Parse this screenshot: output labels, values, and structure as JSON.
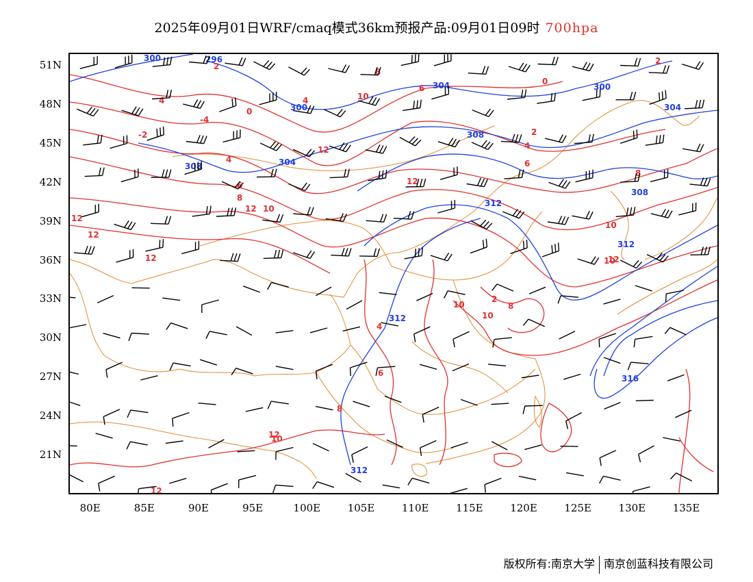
{
  "title": {
    "main": "2025年09月01日WRF/cmaq模式36km预报产品:09月01日09时",
    "level": "700hpa",
    "level_color": "#e03030"
  },
  "map": {
    "projection": "lat-lon",
    "lon_range": [
      78,
      138
    ],
    "lat_range": [
      18,
      52
    ],
    "lat_labels": [
      "51N",
      "48N",
      "45N",
      "42N",
      "39N",
      "36N",
      "33N",
      "30N",
      "27N",
      "24N",
      "21N"
    ],
    "lon_labels": [
      "80E",
      "85E",
      "90E",
      "95E",
      "100E",
      "105E",
      "110E",
      "115E",
      "120E",
      "125E",
      "130E",
      "135E"
    ],
    "colors": {
      "geopotential_height": "#2040e0",
      "temperature": "#e03030",
      "boundaries": "#e08a30",
      "wind_barbs": "#000000"
    },
    "height_contour_labels": [
      "300",
      "296",
      "300",
      "304",
      "300",
      "304",
      "308",
      "304",
      "308",
      "312",
      "308",
      "312",
      "312",
      "316",
      "312"
    ],
    "temperature_contour_labels": [
      "2",
      "0",
      "4",
      "6",
      "8",
      "10",
      "0",
      "4",
      "2",
      "-2",
      "-4",
      "2",
      "4",
      "6",
      "8",
      "10",
      "12",
      "12",
      "12",
      "12",
      "4",
      "6",
      "8",
      "10",
      "12",
      "12",
      "12",
      "10",
      "10",
      "10",
      "8",
      "2",
      "4",
      "6",
      "8",
      "10",
      "12",
      "12"
    ]
  },
  "footer": {
    "copyright": "版权所有:南京大学",
    "company": "南京创蓝科技有限公司"
  }
}
